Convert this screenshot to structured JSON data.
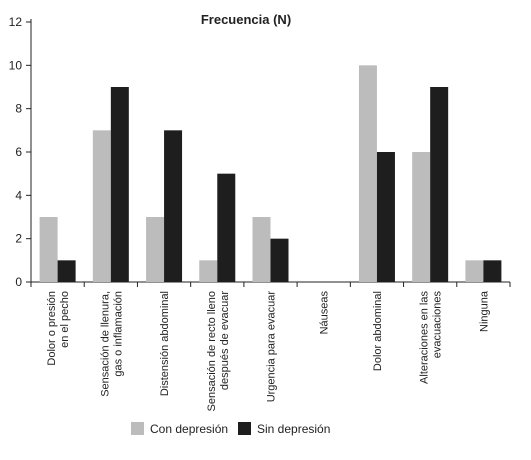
{
  "chart_data": {
    "type": "bar",
    "title": "Frecuencia (N)",
    "xlabel": "",
    "ylabel": "",
    "ylim": [
      0,
      12
    ],
    "yticks": [
      0,
      2,
      4,
      6,
      8,
      10,
      12
    ],
    "grid": false,
    "legend_position": "bottom",
    "categories": [
      [
        "Dolor o presión",
        "en el pecho"
      ],
      [
        "Sensación de llenura,",
        "gas o inflamación"
      ],
      [
        "Distensión abdominal"
      ],
      [
        "Sensación de recto lleno",
        "después de evacuar"
      ],
      [
        "Urgencia para evacuar"
      ],
      [
        "Náuseas"
      ],
      [
        "Dolor abdominal"
      ],
      [
        "Alteraciones en las",
        "evacuaciones"
      ],
      [
        "Ninguna"
      ]
    ],
    "series": [
      {
        "name": "Con depresión",
        "color": "#bcbcbc",
        "values": [
          3,
          7,
          3,
          1,
          3,
          0,
          10,
          6,
          1
        ]
      },
      {
        "name": "Sin depresión",
        "color": "#1e1e1e",
        "values": [
          1,
          9,
          7,
          5,
          2,
          0,
          6,
          9,
          1
        ]
      }
    ]
  }
}
